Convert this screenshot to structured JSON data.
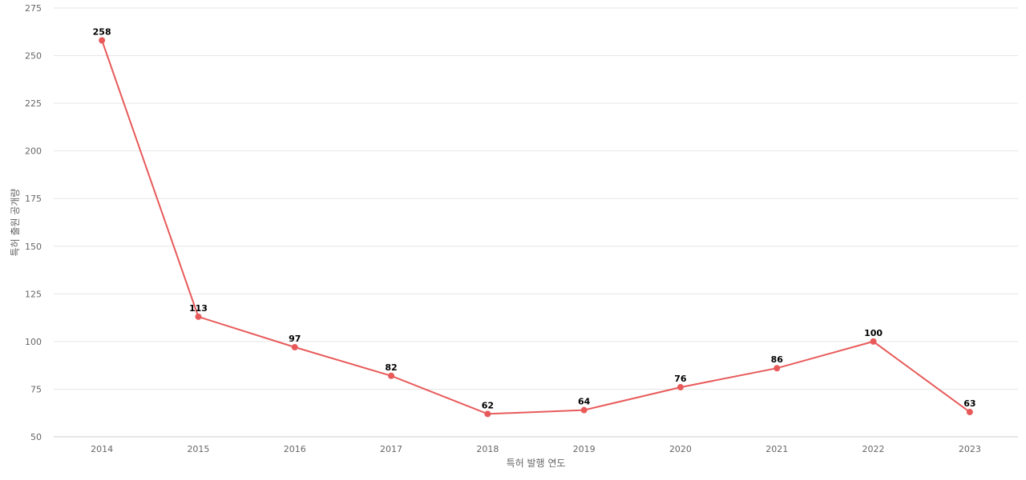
{
  "chart_data": {
    "type": "line",
    "title": "",
    "xlabel": "특허 발행 연도",
    "ylabel": "특허 출원 공개량",
    "categories": [
      "2014",
      "2015",
      "2016",
      "2017",
      "2018",
      "2019",
      "2020",
      "2021",
      "2022",
      "2023"
    ],
    "series": [
      {
        "values": [
          258,
          113,
          97,
          82,
          62,
          64,
          76,
          86,
          100,
          63
        ],
        "color": "#e85a5a"
      }
    ],
    "ylim": [
      50,
      275
    ],
    "yticks": [
      50,
      75,
      100,
      125,
      150,
      175,
      200,
      225,
      250,
      275
    ],
    "grid": true,
    "data_labels": true
  }
}
